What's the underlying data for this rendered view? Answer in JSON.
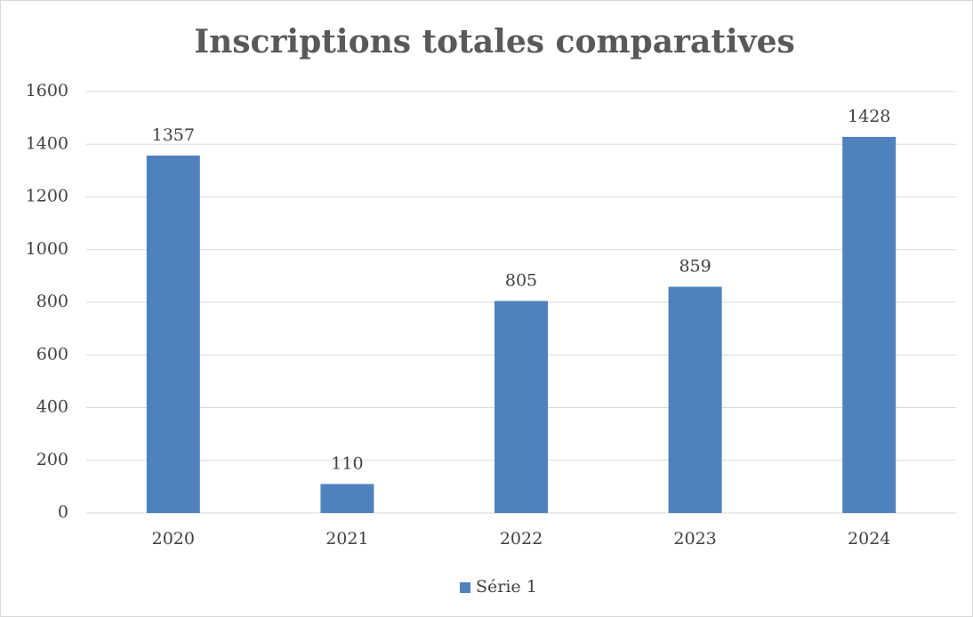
{
  "chart_data": {
    "type": "bar",
    "title": "Inscriptions totales comparatives",
    "categories": [
      "2020",
      "2021",
      "2022",
      "2023",
      "2024"
    ],
    "series": [
      {
        "name": "Série 1",
        "color": "#4f81bd",
        "values": [
          1357,
          110,
          805,
          859,
          1428
        ]
      }
    ],
    "ylim": [
      0,
      1600
    ],
    "yticks": [
      0,
      200,
      400,
      600,
      800,
      1000,
      1200,
      1400,
      1600
    ],
    "grid": true,
    "legend": "bottom",
    "data_labels": true
  }
}
